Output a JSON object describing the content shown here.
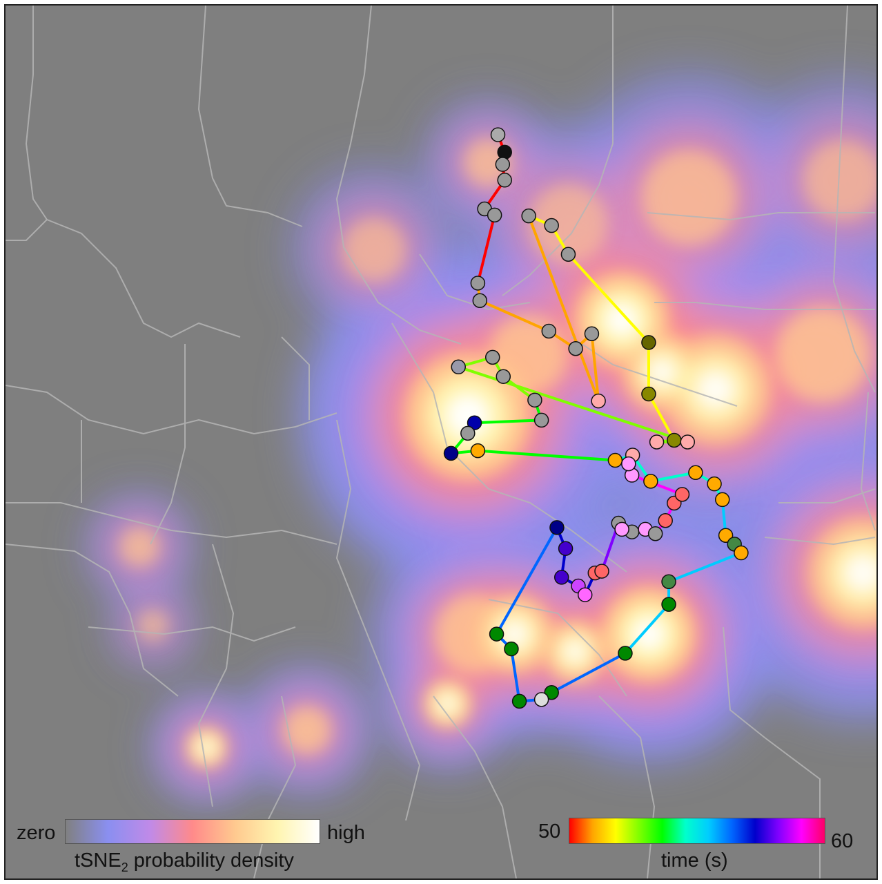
{
  "chart_data": {
    "type": "scatter",
    "title": "",
    "density_legend": {
      "low_label": "zero",
      "high_label": "high",
      "title_main": "tSNE",
      "title_sub": "2",
      "title_rest": " probability density",
      "colors": [
        "#808080",
        "#8a8ff0",
        "#c08ae8",
        "#ff8a8a",
        "#ffc98f",
        "#fff5b0",
        "#ffffff"
      ]
    },
    "time_legend": {
      "min_label": "50",
      "max_label": "60",
      "title": "time (s)",
      "colors": [
        "#ff0000",
        "#ffa500",
        "#ffff00",
        "#7fff00",
        "#00ff00",
        "#00ffcc",
        "#00ccff",
        "#0066ff",
        "#0000cc",
        "#8000ff",
        "#ff00ff",
        "#ff0066"
      ]
    },
    "density_peaks": [
      {
        "x": 0.96,
        "y": 0.72,
        "s": 0.06,
        "w": 1.0
      },
      {
        "x": 0.69,
        "y": 0.47,
        "s": 0.08,
        "w": 1.0
      },
      {
        "x": 0.76,
        "y": 0.72,
        "s": 0.05,
        "w": 0.9
      },
      {
        "x": 0.92,
        "y": 0.36,
        "s": 0.06,
        "w": 1.0
      },
      {
        "x": 0.98,
        "y": 0.42,
        "s": 0.05,
        "w": 0.9
      },
      {
        "x": 0.78,
        "y": 0.4,
        "s": 0.05,
        "w": 0.8
      },
      {
        "x": 1.06,
        "y": 0.44,
        "s": 0.07,
        "w": 0.9
      },
      {
        "x": 1.22,
        "y": 0.4,
        "s": 0.06,
        "w": 0.8
      },
      {
        "x": 1.28,
        "y": 0.65,
        "s": 0.07,
        "w": 0.9
      },
      {
        "x": 1.45,
        "y": 0.34,
        "s": 0.05,
        "w": 0.8
      },
      {
        "x": 1.52,
        "y": 0.66,
        "s": 0.05,
        "w": 1.0
      },
      {
        "x": 0.7,
        "y": 0.72,
        "s": 0.05,
        "w": 0.8
      },
      {
        "x": 0.85,
        "y": 0.74,
        "s": 0.04,
        "w": 0.9
      },
      {
        "x": 0.66,
        "y": 0.8,
        "s": 0.03,
        "w": 0.9
      },
      {
        "x": 0.3,
        "y": 0.85,
        "s": 0.025,
        "w": 0.9
      },
      {
        "x": 0.45,
        "y": 0.83,
        "s": 0.03,
        "w": 0.8
      },
      {
        "x": 0.2,
        "y": 0.62,
        "s": 0.025,
        "w": 0.7
      },
      {
        "x": 0.22,
        "y": 0.71,
        "s": 0.02,
        "w": 0.6
      },
      {
        "x": 1.02,
        "y": 0.22,
        "s": 0.06,
        "w": 0.7
      },
      {
        "x": 0.84,
        "y": 0.25,
        "s": 0.05,
        "w": 0.6
      },
      {
        "x": 0.72,
        "y": 0.18,
        "s": 0.03,
        "w": 0.7
      },
      {
        "x": 0.55,
        "y": 0.28,
        "s": 0.04,
        "w": 0.6
      },
      {
        "x": 1.25,
        "y": 0.2,
        "s": 0.05,
        "w": 0.6
      }
    ],
    "trajectory": [
      {
        "x": 0.735,
        "y": 0.148,
        "c": "#aaaaaa"
      },
      {
        "x": 0.745,
        "y": 0.168,
        "c": "#111111"
      },
      {
        "x": 0.742,
        "y": 0.182,
        "c": "#999999"
      },
      {
        "x": 0.745,
        "y": 0.2,
        "c": "#999999"
      },
      {
        "x": 0.715,
        "y": 0.233,
        "c": "#999999"
      },
      {
        "x": 0.73,
        "y": 0.24,
        "c": "#999999"
      },
      {
        "x": 0.705,
        "y": 0.318,
        "c": "#999999"
      },
      {
        "x": 0.708,
        "y": 0.338,
        "c": "#999999"
      },
      {
        "x": 0.811,
        "y": 0.373,
        "c": "#999999"
      },
      {
        "x": 0.851,
        "y": 0.393,
        "c": "#999999"
      },
      {
        "x": 0.875,
        "y": 0.376,
        "c": "#999999"
      },
      {
        "x": 0.885,
        "y": 0.453,
        "c": "#ffaaaa"
      },
      {
        "x": 0.781,
        "y": 0.241,
        "c": "#999999"
      },
      {
        "x": 0.815,
        "y": 0.252,
        "c": "#999999"
      },
      {
        "x": 0.84,
        "y": 0.285,
        "c": "#999999"
      },
      {
        "x": 0.96,
        "y": 0.386,
        "c": "#666600"
      },
      {
        "x": 0.96,
        "y": 0.445,
        "c": "#888800"
      },
      {
        "x": 0.998,
        "y": 0.498,
        "c": "#888800"
      },
      {
        "x": 0.972,
        "y": 0.5,
        "c": "#ffaaaa"
      },
      {
        "x": 1.018,
        "y": 0.5,
        "c": "#ffaaaa"
      },
      {
        "x": 0.676,
        "y": 0.414,
        "c": "#9999aa"
      },
      {
        "x": 0.727,
        "y": 0.403,
        "c": "#999999"
      },
      {
        "x": 0.743,
        "y": 0.425,
        "c": "#999999"
      },
      {
        "x": 0.79,
        "y": 0.452,
        "c": "#999999"
      },
      {
        "x": 0.8,
        "y": 0.475,
        "c": "#999999"
      },
      {
        "x": 0.7,
        "y": 0.478,
        "c": "#0000aa"
      },
      {
        "x": 0.69,
        "y": 0.49,
        "c": "#999999"
      },
      {
        "x": 0.665,
        "y": 0.513,
        "c": "#000088"
      },
      {
        "x": 0.705,
        "y": 0.51,
        "c": "#ffaa00"
      },
      {
        "x": 0.91,
        "y": 0.521,
        "c": "#ffaa00"
      },
      {
        "x": 0.936,
        "y": 0.515,
        "c": "#ffaaaa"
      },
      {
        "x": 0.963,
        "y": 0.545,
        "c": "#ffaa00"
      },
      {
        "x": 1.03,
        "y": 0.535,
        "c": "#ffaa00"
      },
      {
        "x": 1.058,
        "y": 0.548,
        "c": "#ffaa00"
      },
      {
        "x": 1.07,
        "y": 0.566,
        "c": "#ffaa00"
      },
      {
        "x": 1.075,
        "y": 0.607,
        "c": "#ffaa00"
      },
      {
        "x": 1.088,
        "y": 0.617,
        "c": "#448844"
      },
      {
        "x": 1.098,
        "y": 0.627,
        "c": "#ffaa00"
      },
      {
        "x": 0.99,
        "y": 0.66,
        "c": "#448844"
      },
      {
        "x": 0.99,
        "y": 0.686,
        "c": "#008800"
      },
      {
        "x": 0.925,
        "y": 0.742,
        "c": "#008800"
      },
      {
        "x": 0.815,
        "y": 0.787,
        "c": "#008800"
      },
      {
        "x": 0.8,
        "y": 0.795,
        "c": "#dddddd"
      },
      {
        "x": 0.767,
        "y": 0.797,
        "c": "#008800"
      },
      {
        "x": 0.755,
        "y": 0.737,
        "c": "#008800"
      },
      {
        "x": 0.733,
        "y": 0.72,
        "c": "#008800"
      },
      {
        "x": 0.823,
        "y": 0.598,
        "c": "#000088"
      },
      {
        "x": 0.836,
        "y": 0.622,
        "c": "#4400cc"
      },
      {
        "x": 0.83,
        "y": 0.655,
        "c": "#4400cc"
      },
      {
        "x": 0.855,
        "y": 0.665,
        "c": "#cc44ff"
      },
      {
        "x": 0.865,
        "y": 0.675,
        "c": "#ff66ff"
      },
      {
        "x": 0.88,
        "y": 0.65,
        "c": "#ff6666"
      },
      {
        "x": 0.89,
        "y": 0.648,
        "c": "#ff6666"
      },
      {
        "x": 0.915,
        "y": 0.593,
        "c": "#999999"
      },
      {
        "x": 0.935,
        "y": 0.603,
        "c": "#999999"
      },
      {
        "x": 0.92,
        "y": 0.6,
        "c": "#ff99ff"
      },
      {
        "x": 0.955,
        "y": 0.6,
        "c": "#ff99ff"
      },
      {
        "x": 0.97,
        "y": 0.605,
        "c": "#999999"
      },
      {
        "x": 0.985,
        "y": 0.59,
        "c": "#ff6666"
      },
      {
        "x": 0.998,
        "y": 0.57,
        "c": "#ff6666"
      },
      {
        "x": 1.01,
        "y": 0.56,
        "c": "#ff6666"
      },
      {
        "x": 0.935,
        "y": 0.538,
        "c": "#ff99ff"
      },
      {
        "x": 0.93,
        "y": 0.525,
        "c": "#ff99ff"
      }
    ]
  }
}
